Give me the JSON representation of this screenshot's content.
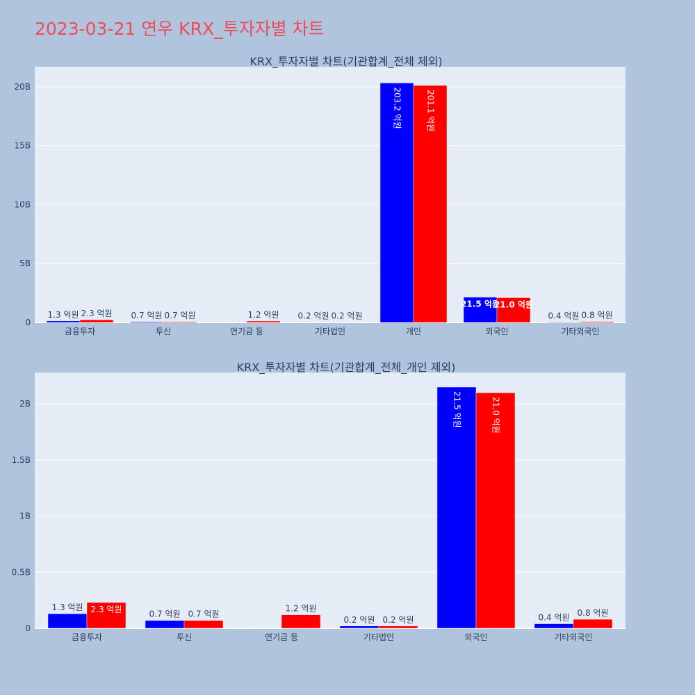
{
  "title": "2023-03-21 연우 KRX_투자자별 차트",
  "colors": {
    "buy": "#0000ff",
    "sell": "#ff0000",
    "title": "#ef4a5a"
  },
  "chart_data": [
    {
      "type": "bar",
      "title": "KRX_투자자별 차트(기관합계_전체 제외)",
      "categories": [
        "금융투자",
        "투신",
        "연기금 등",
        "기타법인",
        "개인",
        "외국인",
        "기타외국인"
      ],
      "series": [
        {
          "values": [
            130000000,
            70000000,
            0,
            20000000,
            20320000000,
            2150000000,
            40000000
          ],
          "labels": [
            "1.3 억원",
            "0.7 억원",
            "",
            "0.2 억원",
            "203.2 억원",
            "21.5 억원",
            "0.4 억원"
          ]
        },
        {
          "values": [
            230000000,
            70000000,
            120000000,
            20000000,
            20110000000,
            2100000000,
            80000000
          ],
          "labels": [
            "2.3 억원",
            "0.7 억원",
            "1.2 억원",
            "0.2 억원",
            "201.1 억원",
            "21.0 억원",
            "0.8 억원"
          ]
        }
      ],
      "yticks": [
        0,
        5000000000,
        10000000000,
        15000000000,
        20000000000
      ],
      "ytick_labels": [
        "0",
        "5B",
        "10B",
        "15B",
        "20B"
      ],
      "ylim": [
        0,
        21700000000
      ],
      "grid": true
    },
    {
      "type": "bar",
      "title": "KRX_투자자별 차트(기관합계_전체_개인 제외)",
      "categories": [
        "금융투자",
        "투신",
        "연기금 등",
        "기타법인",
        "외국인",
        "기타외국인"
      ],
      "series": [
        {
          "values": [
            130000000,
            70000000,
            0,
            20000000,
            2150000000,
            40000000
          ],
          "labels": [
            "1.3 억원",
            "0.7 억원",
            "",
            "0.2 억원",
            "21.5 억원",
            "0.4 억원"
          ]
        },
        {
          "values": [
            230000000,
            70000000,
            120000000,
            20000000,
            2100000000,
            80000000
          ],
          "labels": [
            "2.3 억원",
            "0.7 억원",
            "1.2 억원",
            "0.2 억원",
            "21.0 억원",
            "0.8 억원"
          ]
        }
      ],
      "yticks": [
        0,
        500000000,
        1000000000,
        1500000000,
        2000000000
      ],
      "ytick_labels": [
        "0",
        "0.5B",
        "1B",
        "1.5B",
        "2B"
      ],
      "ylim": [
        0,
        2280000000
      ],
      "grid": true
    }
  ]
}
